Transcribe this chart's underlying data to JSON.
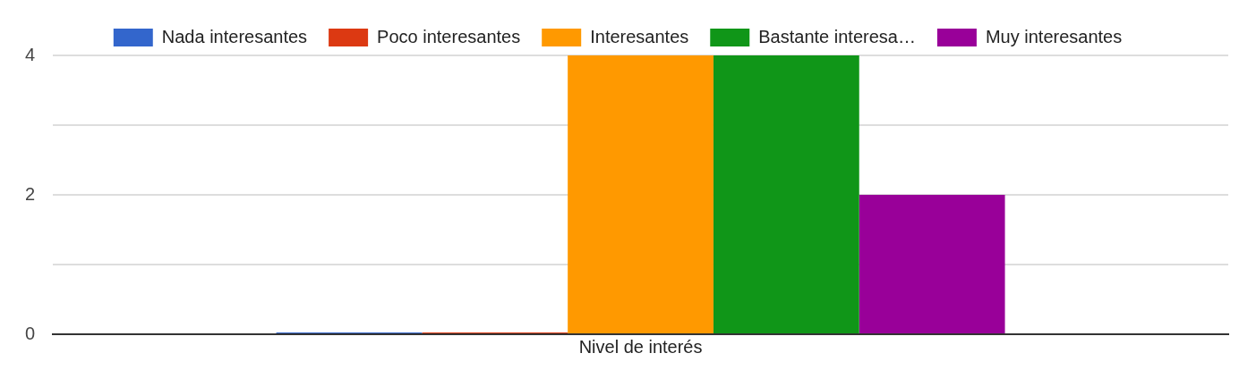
{
  "chart_data": {
    "type": "bar",
    "categories": [
      "Nivel de interés"
    ],
    "series": [
      {
        "name": "Nada interesantes",
        "color": "#3366cc",
        "values": [
          0
        ]
      },
      {
        "name": "Poco interesantes",
        "color": "#dc3912",
        "values": [
          0
        ]
      },
      {
        "name": "Interesantes",
        "color": "#ff9900",
        "values": [
          4
        ]
      },
      {
        "name": "Bastante interesa…",
        "color": "#109618",
        "values": [
          4
        ]
      },
      {
        "name": "Muy interesantes",
        "color": "#990099",
        "values": [
          2
        ]
      }
    ],
    "ylim": [
      0,
      4
    ],
    "yticks": [
      0,
      {
        "value": 1,
        "label": null
      },
      2,
      {
        "value": 3,
        "label": null
      },
      4
    ],
    "grid": "y",
    "legend": "top"
  }
}
